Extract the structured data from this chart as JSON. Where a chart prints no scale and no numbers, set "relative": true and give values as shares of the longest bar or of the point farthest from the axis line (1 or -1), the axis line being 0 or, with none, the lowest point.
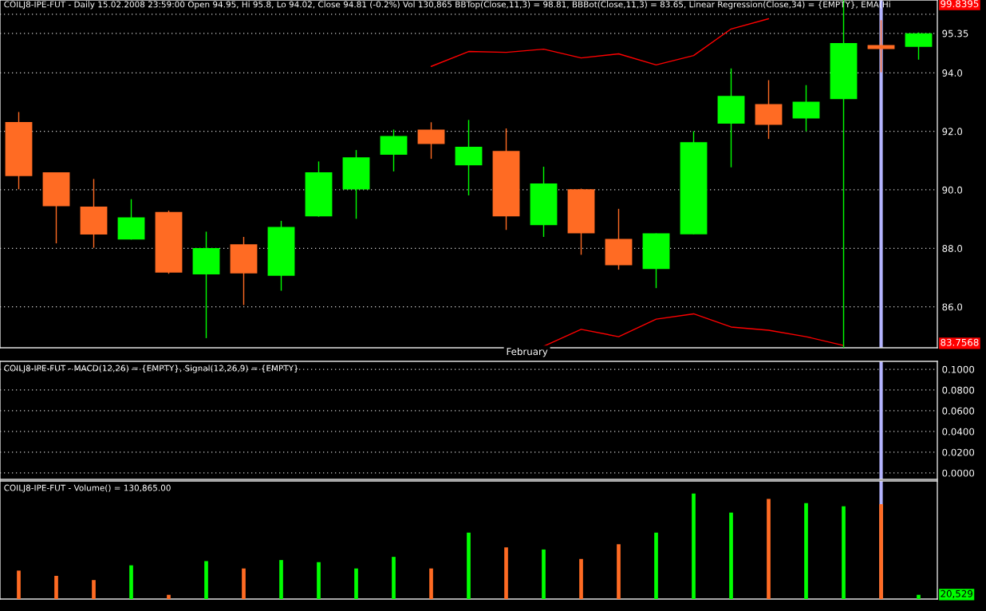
{
  "chart_data": [
    {
      "type": "candlestick",
      "title": "COILJ8-IPE-FUT - Daily 15.02.2008 23:59:00 Open 94.95, Hi 95.8, Lo 94.02, Close 94.81 (-0.2%) Vol 130,865 BBTop(Close,11,3) = 98.81, BBBot(Close,11,3) = 83.65, Linear Regression(Close,34) = {EMPTY}, EMA(Hi",
      "categories": [
        null,
        null,
        null,
        null,
        null,
        null,
        null,
        null,
        null,
        null,
        null,
        null,
        null,
        null,
        null,
        null,
        null,
        null,
        null,
        null,
        null,
        null,
        null,
        null,
        null
      ],
      "ohlc": [
        [
          92.32,
          92.66,
          90.02,
          90.47
        ],
        [
          90.6,
          90.6,
          88.17,
          89.44
        ],
        [
          89.43,
          90.37,
          88.02,
          88.47
        ],
        [
          88.3,
          89.68,
          88.3,
          89.06
        ],
        [
          89.24,
          89.29,
          87.13,
          87.17
        ],
        [
          87.11,
          88.57,
          84.93,
          88.01
        ],
        [
          88.14,
          88.39,
          86.06,
          87.14
        ],
        [
          87.06,
          88.94,
          86.55,
          88.73
        ],
        [
          89.09,
          90.97,
          89.08,
          90.6
        ],
        [
          90.01,
          91.36,
          89.01,
          91.11
        ],
        [
          91.2,
          92.06,
          90.63,
          91.84
        ],
        [
          92.06,
          92.31,
          91.06,
          91.57
        ],
        [
          90.84,
          92.39,
          89.81,
          91.47
        ],
        [
          91.33,
          92.1,
          88.63,
          89.09
        ],
        [
          88.79,
          90.79,
          88.39,
          90.22
        ],
        [
          90.02,
          90.04,
          87.78,
          88.51
        ],
        [
          88.32,
          89.35,
          87.27,
          87.42
        ],
        [
          87.29,
          88.51,
          86.64,
          88.51
        ],
        [
          88.48,
          92.0,
          88.48,
          91.63
        ],
        [
          92.26,
          94.15,
          90.77,
          93.21
        ],
        [
          92.93,
          93.75,
          91.74,
          92.22
        ],
        [
          92.44,
          93.58,
          92.0,
          93.01
        ],
        [
          93.1,
          96.49,
          84.6,
          95.02
        ],
        [
          94.95,
          95.8,
          94.02,
          94.81
        ],
        [
          94.89,
          95.38,
          94.45,
          95.35
        ]
      ],
      "colors": [
        "#ff6b23",
        "#ff6b23",
        "#ff6b23",
        "#00ff00",
        "#ff6b23",
        "#00ff00",
        "#ff6b23",
        "#00ff00",
        "#00ff00",
        "#00ff00",
        "#00ff00",
        "#ff6b23",
        "#00ff00",
        "#ff6b23",
        "#00ff00",
        "#ff6b23",
        "#ff6b23",
        "#00ff00",
        "#00ff00",
        "#00ff00",
        "#ff6b23",
        "#00ff00",
        "#00ff00",
        "#ff6b23",
        "#00ff00"
      ],
      "series": [
        {
          "type": "line",
          "color": "#ff0000",
          "values": [
            null,
            null,
            null,
            null,
            null,
            null,
            null,
            null,
            null,
            null,
            null,
            94.22,
            94.73,
            94.7,
            94.81,
            94.51,
            94.65,
            94.27,
            94.59,
            95.5,
            95.85,
            null,
            null,
            null,
            null
          ]
        },
        {
          "type": "line",
          "color": "#ff0000",
          "values": [
            null,
            null,
            null,
            null,
            null,
            null,
            null,
            null,
            null,
            null,
            null,
            null,
            null,
            null,
            84.65,
            85.23,
            84.98,
            85.58,
            85.76,
            85.31,
            85.2,
            84.98,
            84.68,
            null,
            null
          ]
        }
      ],
      "ylim": [
        84.6,
        96.49
      ],
      "yticks": [
        {
          "value": 86,
          "label": "86.0"
        },
        {
          "value": 88,
          "label": "88.0"
        },
        {
          "value": 90,
          "label": "90.0"
        },
        {
          "value": 92,
          "label": "92.0"
        },
        {
          "value": 94,
          "label": "94.0"
        },
        95.35,
        {
          "value": 96,
          "label": null
        }
      ],
      "grid": "y",
      "annotations": [
        "99.8395",
        "83.7568",
        "February"
      ]
    },
    {
      "type": "line",
      "title": "COILJ8-IPE-FUT - MACD(12,26) = {EMPTY}, Signal(12,26,9) = {EMPTY}",
      "categories": [
        null,
        null,
        null,
        null,
        null,
        null,
        null,
        null,
        null,
        null,
        null,
        null,
        null,
        null,
        null,
        null,
        null,
        null,
        null,
        null,
        null,
        null,
        null,
        null,
        null
      ],
      "ylim": [
        -0.0062,
        0.1077
      ],
      "yticks": [
        {
          "value": 0,
          "label": "0.0000"
        },
        {
          "value": 0.02,
          "label": "0.0200"
        },
        {
          "value": 0.04,
          "label": "0.0400"
        },
        {
          "value": 0.06,
          "label": "0.0600"
        },
        {
          "value": 0.08,
          "label": "0.0800"
        },
        {
          "value": 0.1,
          "label": "0.1000"
        }
      ],
      "grid": "y",
      "tick_labels": "y"
    },
    {
      "type": "bar",
      "title": "COILJ8-IPE-FUT - Volume() = 130,865.00",
      "relative": true,
      "categories": [
        null,
        null,
        null,
        null,
        null,
        null,
        null,
        null,
        null,
        null,
        null,
        null,
        null,
        null,
        null,
        null,
        null,
        null,
        null,
        null,
        null,
        null,
        null,
        null,
        null
      ],
      "values": [
        0.27,
        0.22,
        0.18,
        0.32,
        0.04,
        0.36,
        0.29,
        0.37,
        0.35,
        0.29,
        0.4,
        0.29,
        0.63,
        0.49,
        0.47,
        0.38,
        0.52,
        0.63,
        1,
        0.82,
        0.95,
        0.91,
        0.88,
        0.9,
        0.04
      ],
      "colors": [
        "#ff6b23",
        "#ff6b23",
        "#ff6b23",
        "#00ff00",
        "#ff6b23",
        "#00ff00",
        "#ff6b23",
        "#00ff00",
        "#00ff00",
        "#00ff00",
        "#00ff00",
        "#ff6b23",
        "#00ff00",
        "#ff6b23",
        "#00ff00",
        "#ff6b23",
        "#ff6b23",
        "#00ff00",
        "#00ff00",
        "#00ff00",
        "#ff6b23",
        "#00ff00",
        "#00ff00",
        "#ff6b23",
        "#00ff00"
      ],
      "tick_labels": false,
      "annotations": [
        "20,529"
      ]
    }
  ]
}
